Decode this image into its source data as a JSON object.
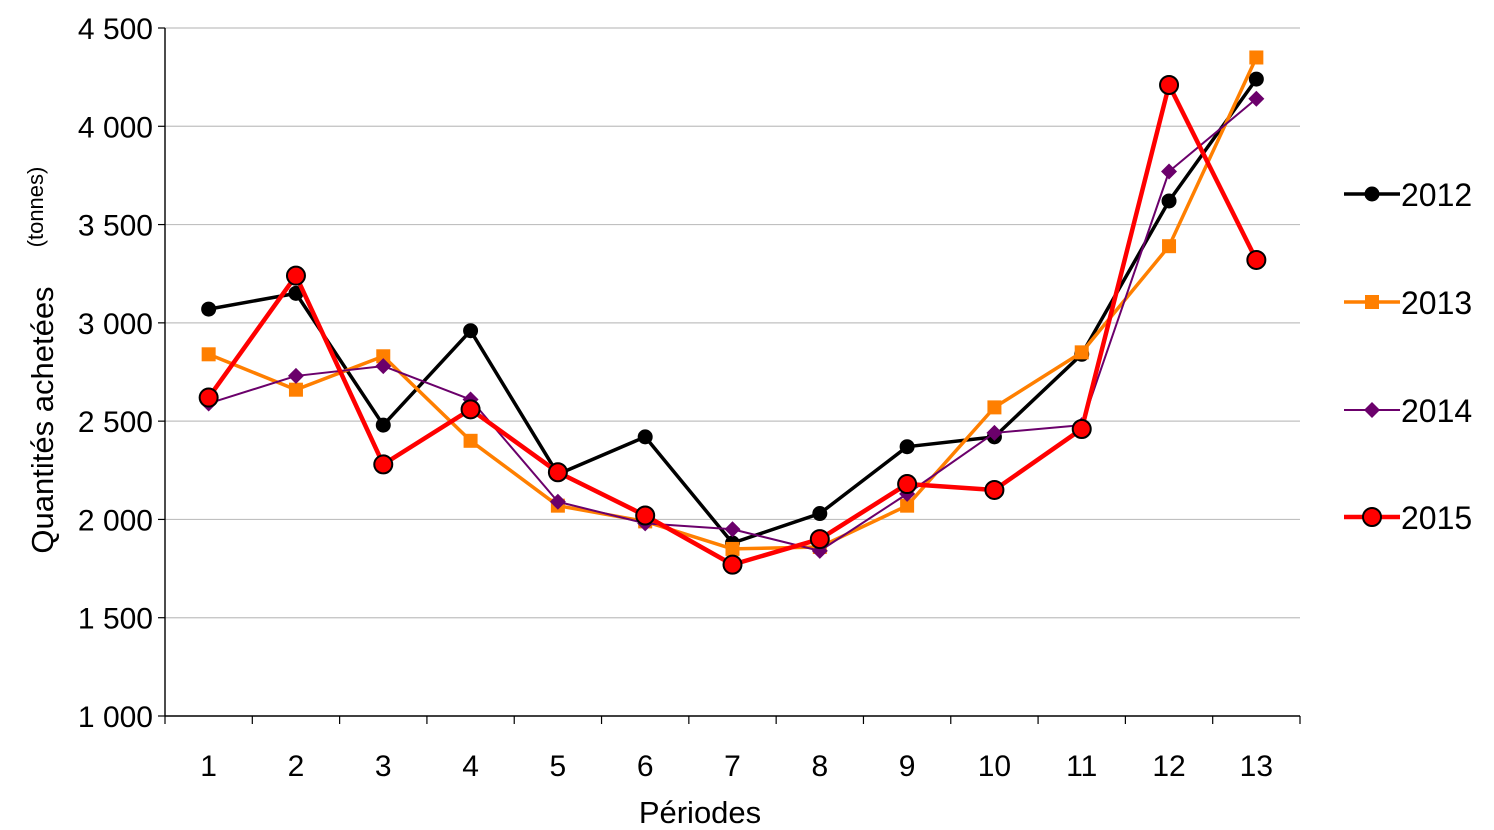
{
  "chart_data": {
    "type": "line",
    "title": "",
    "xlabel": "Périodes",
    "ylabel": "Quantités achetées",
    "ylabel_unit": "(tonnes)",
    "categories": [
      "1",
      "2",
      "3",
      "4",
      "5",
      "6",
      "7",
      "8",
      "9",
      "10",
      "11",
      "12",
      "13"
    ],
    "ylim": [
      1000,
      4500
    ],
    "ytick_values": [
      1000,
      1500,
      2000,
      2500,
      3000,
      3500,
      4000,
      4500
    ],
    "ytick_labels": [
      "1 000",
      "1 500",
      "2 000",
      "2 500",
      "3 000",
      "3 500",
      "4 000",
      "4 500"
    ],
    "grid": "horizontal",
    "legend_position": "right",
    "series": [
      {
        "name": "2012",
        "color": "#000000",
        "marker": "circle",
        "values": [
          3070,
          3150,
          2480,
          2960,
          2230,
          2420,
          1880,
          2030,
          2370,
          2420,
          2840,
          3620,
          4240
        ]
      },
      {
        "name": "2013",
        "color": "#ff7f00",
        "marker": "square",
        "values": [
          2840,
          2660,
          2830,
          2400,
          2070,
          1990,
          1850,
          1860,
          2070,
          2570,
          2850,
          3390,
          4350
        ]
      },
      {
        "name": "2014",
        "color": "#6b006b",
        "marker": "diamond",
        "values": [
          2590,
          2730,
          2780,
          2610,
          2090,
          1980,
          1950,
          1840,
          2130,
          2440,
          2480,
          3770,
          4140
        ]
      },
      {
        "name": "2015",
        "color": "#ff0000",
        "marker": "circle-red",
        "values": [
          2620,
          3240,
          2280,
          2560,
          2240,
          2020,
          1770,
          1900,
          2180,
          2150,
          2460,
          4210,
          3320
        ]
      }
    ]
  }
}
